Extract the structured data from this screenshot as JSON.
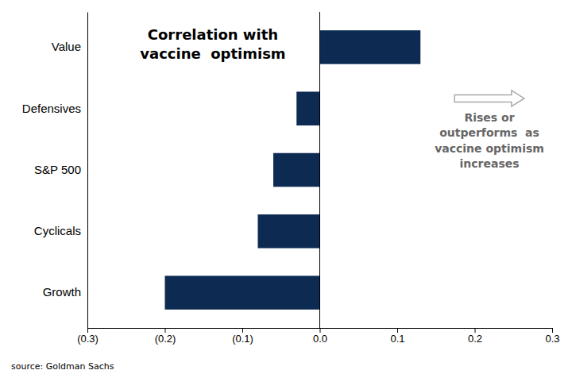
{
  "chart_data": {
    "type": "bar",
    "orientation": "horizontal",
    "title": "Correlation with\nvaccine  optimism",
    "categories": [
      "Value",
      "Defensives",
      "S&P 500",
      "Cyclicals",
      "Growth"
    ],
    "values": [
      0.13,
      -0.03,
      -0.06,
      -0.08,
      -0.2
    ],
    "color": "#0d2b52",
    "xlim": [
      -0.3,
      0.3
    ],
    "xticks": [
      {
        "value": -0.3,
        "label": "(0.3)"
      },
      {
        "value": -0.2,
        "label": "(0.2)"
      },
      {
        "value": -0.1,
        "label": "(0.1)"
      },
      {
        "value": 0.0,
        "label": "0.0"
      },
      0.1,
      0.2,
      0.3
    ],
    "annotations": [
      "Rises or\noutperforms  as\nvaccine optimism\nincreases"
    ],
    "source": "source: Goldman Sachs",
    "grid": false
  }
}
